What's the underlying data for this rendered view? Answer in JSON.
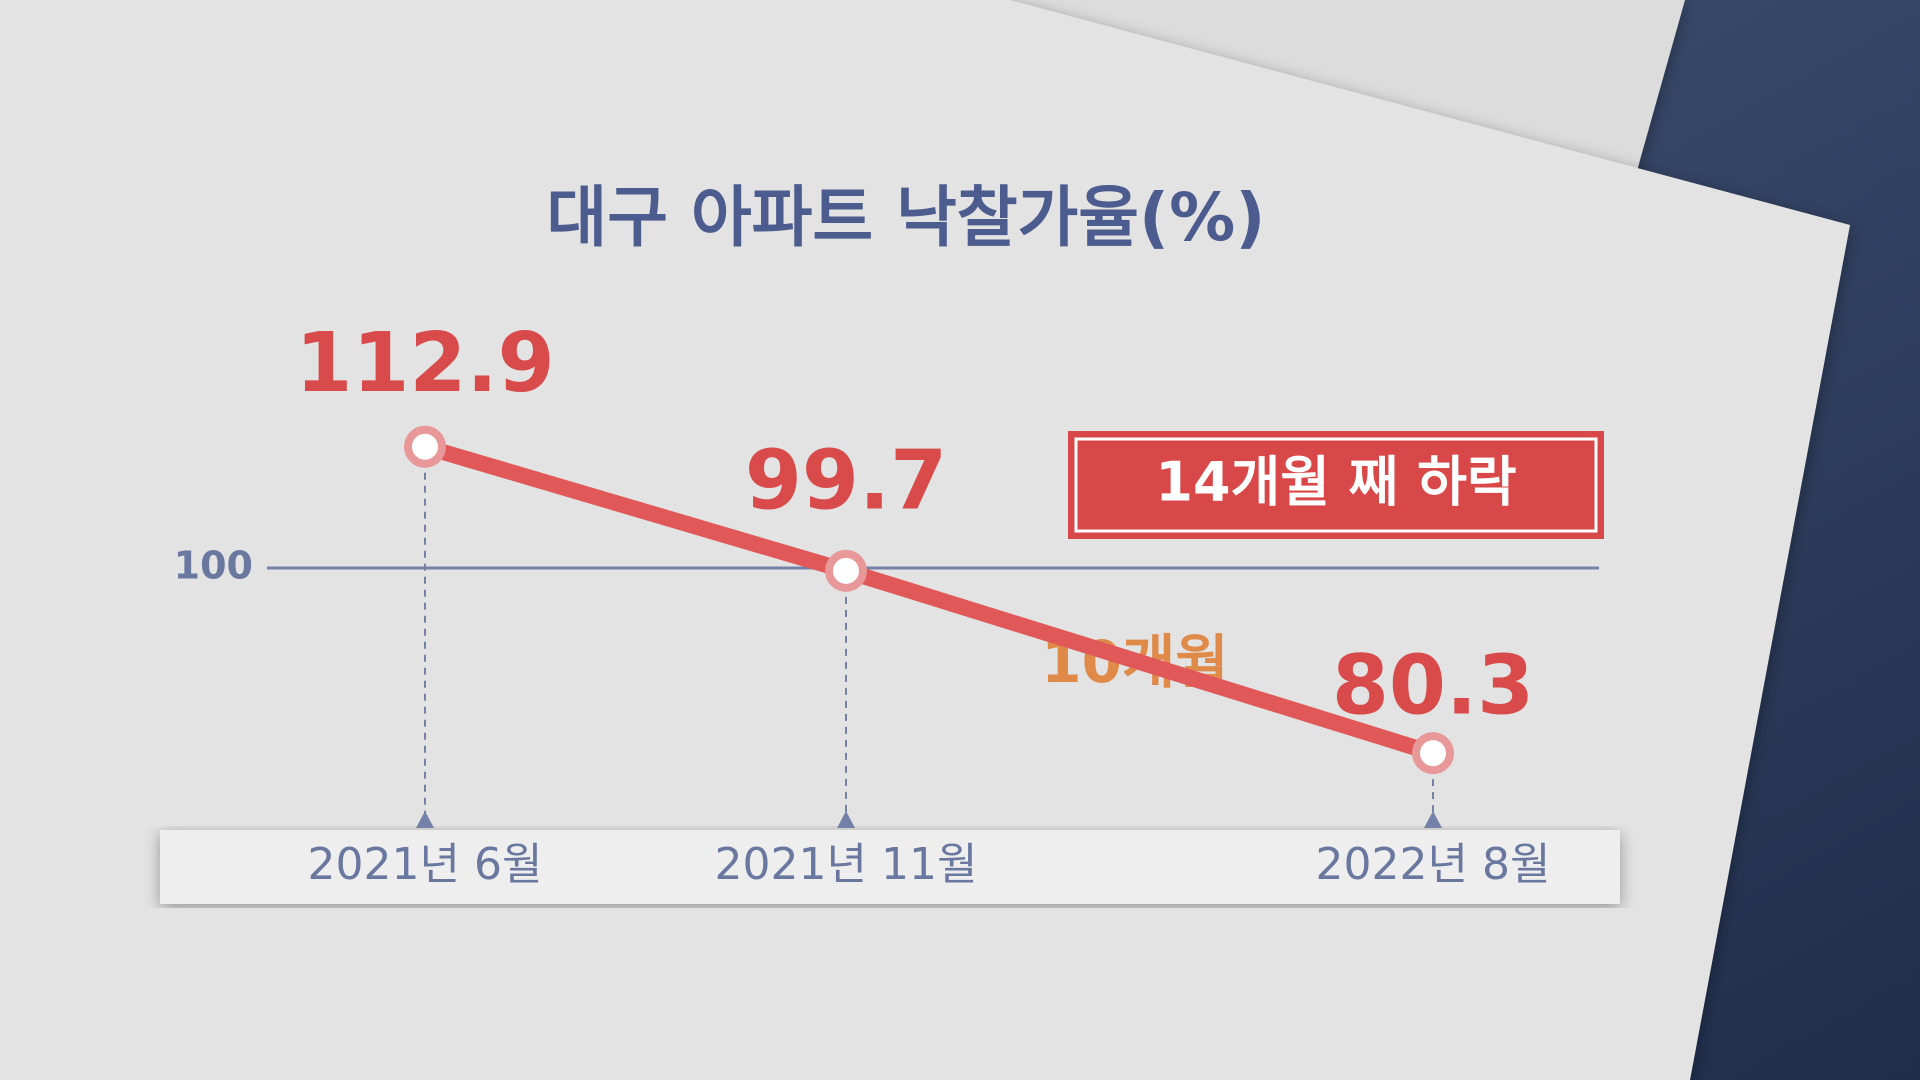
{
  "chart_data": {
    "type": "line",
    "title": "대구 아파트 낙찰가율(%)",
    "categories": [
      "2021년 6월",
      "2021년 11월",
      "2022년 8월"
    ],
    "values": [
      112.9,
      99.7,
      80.3
    ],
    "color": "#e05858",
    "ylim": [
      60,
      130
    ],
    "yticks": [
      100
    ],
    "grid": true,
    "annotations": [
      "14개월 째 하락",
      "10개월"
    ]
  }
}
